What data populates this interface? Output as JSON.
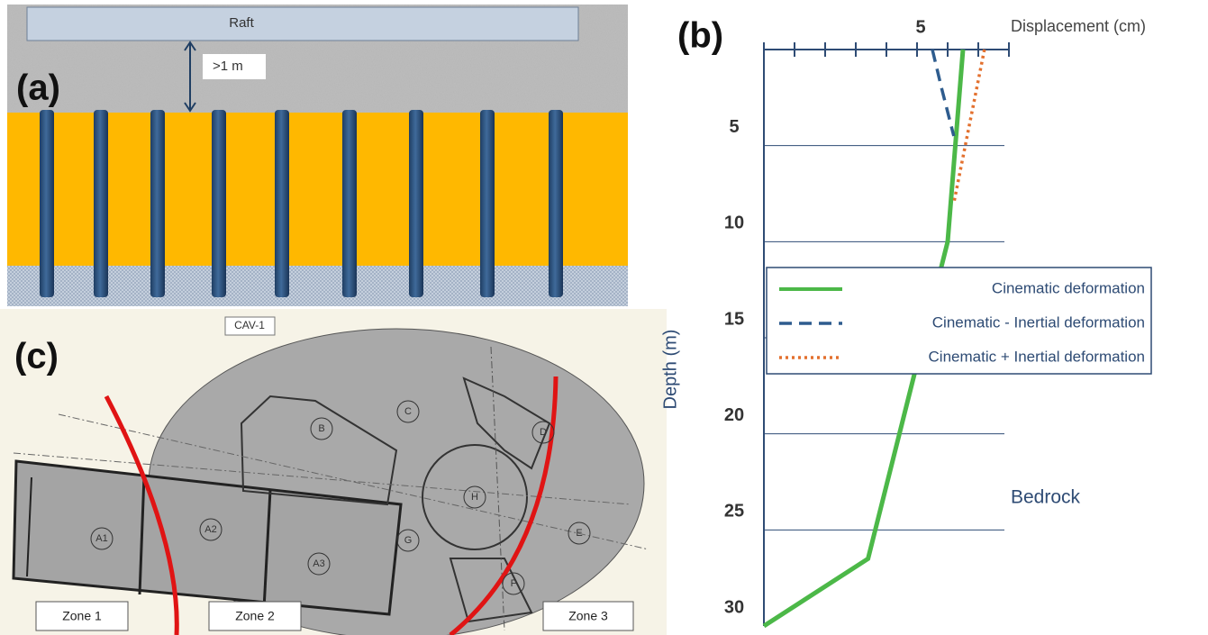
{
  "panel_a": {
    "label": "(a)",
    "raft": "Raft",
    "spacing": ">1 m"
  },
  "panel_c": {
    "label": "(c)",
    "tag": "CAV-1",
    "zones": [
      "Zone 1",
      "Zone 2",
      "Zone 3"
    ],
    "areas": [
      "A1",
      "A2",
      "A3",
      "B",
      "C",
      "D",
      "E",
      "F",
      "G",
      "H"
    ]
  },
  "chart_data": {
    "type": "line",
    "label": "(b)",
    "x_label": "Displacement (cm)",
    "y_label": "Depth (m)",
    "annotation": "Bedrock",
    "xlim": [
      0,
      8
    ],
    "xticks": [
      5
    ],
    "x_minor_ticks": [
      0,
      1,
      2,
      3,
      4,
      6,
      7,
      8
    ],
    "ylim": [
      0,
      30
    ],
    "yticks": [
      5,
      10,
      15,
      20,
      25,
      30
    ],
    "y_inverted": true,
    "x_axis_position": "top",
    "grid": true,
    "legend": "right",
    "series": [
      {
        "name": "Cinematic deformation",
        "color": "#4cb848",
        "dash": "solid",
        "x": [
          6.5,
          6.0,
          3.4,
          0
        ],
        "y": [
          0,
          10,
          26.5,
          30
        ]
      },
      {
        "name": "Cinematic - Inertial deformation",
        "color": "#2e5c8e",
        "dash": "dashed",
        "x": [
          5.5,
          5.8,
          6.2
        ],
        "y": [
          0,
          2,
          4.5
        ]
      },
      {
        "name": "Cinematic + Inertial deformation",
        "color": "#e3702e",
        "dash": "dotted",
        "x": [
          7.2,
          6.2
        ],
        "y": [
          0,
          8
        ]
      }
    ]
  }
}
